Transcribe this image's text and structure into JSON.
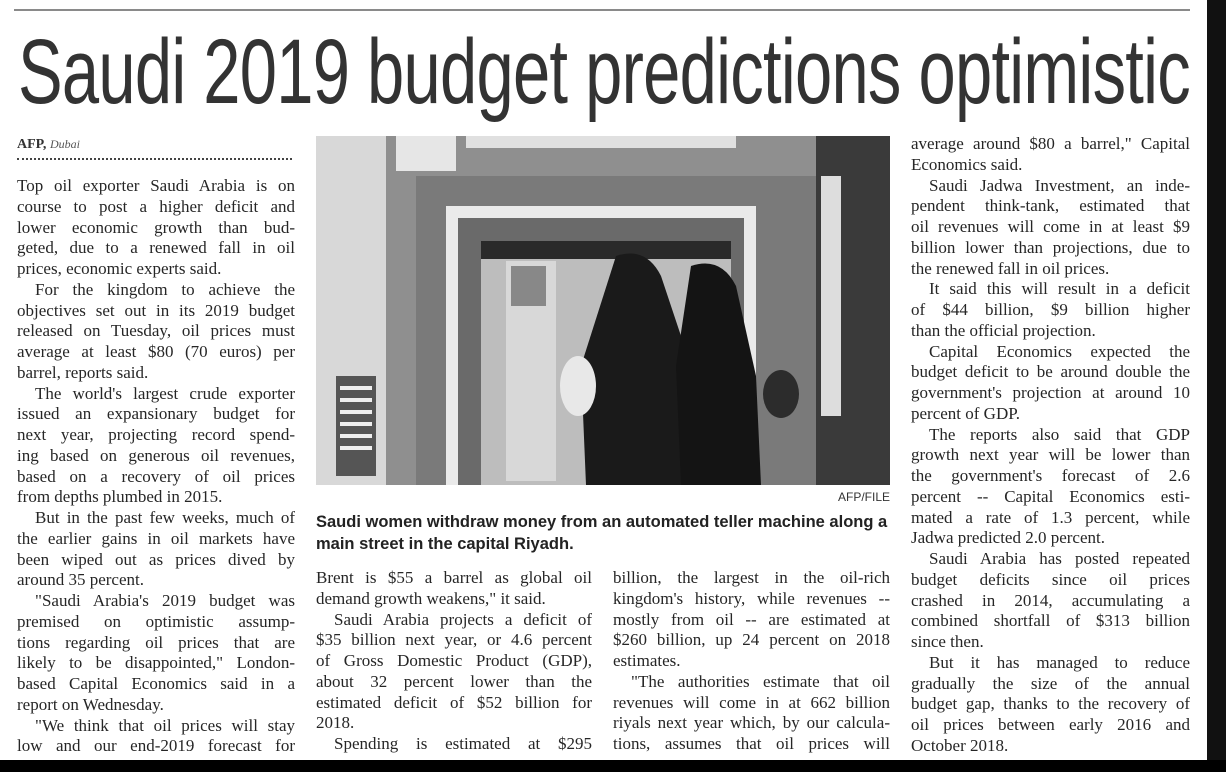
{
  "article": {
    "headline": "Saudi 2019 budget predictions optimistic",
    "byline_agency": "AFP,",
    "byline_place": "Dubai"
  },
  "photo": {
    "credit": "AFP/FILE",
    "caption": "Saudi women withdraw money from an automated teller machine along a main street in the capital Riyadh."
  },
  "columns": [
    {
      "paragraphs": [
        {
          "indent": false,
          "lines": [
            "Top oil exporter Saudi Arabia is on",
            "course to post a higher deficit and",
            "lower economic growth than bud-",
            "geted, due to a renewed fall in oil",
            "prices, economic experts said."
          ]
        },
        {
          "indent": true,
          "lines": [
            "For the kingdom to achieve the",
            "objectives set out in its 2019 budget",
            "released on Tuesday, oil prices must",
            "average at least $80 (70 euros) per",
            "barrel, reports said."
          ]
        },
        {
          "indent": true,
          "lines": [
            "The world's largest crude exporter",
            "issued an expansionary budget for",
            "next year, projecting record spend-",
            "ing based on generous oil revenues,",
            "based on a recovery of oil prices",
            "from depths plumbed in 2015."
          ]
        },
        {
          "indent": true,
          "lines": [
            "But in the past few weeks, much of",
            "the earlier gains in oil markets have",
            "been wiped out as prices dived by",
            "around 35 percent."
          ]
        },
        {
          "indent": true,
          "lines": [
            "\"Saudi Arabia's 2019 budget was",
            "premised on optimistic assump-",
            "tions regarding oil prices that are",
            "likely to be disappointed,\" London-",
            "based Capital Economics said in a",
            "report on Wednesday."
          ]
        },
        {
          "indent": true,
          "continues": true,
          "lines": [
            "\"We think that oil prices will stay",
            "low and our end-2019 forecast for"
          ]
        }
      ]
    },
    {
      "paragraphs": [
        {
          "indent": false,
          "lines": [
            "Brent is $55 a barrel as global oil",
            "demand growth weakens,\" it said."
          ]
        },
        {
          "indent": true,
          "lines": [
            "Saudi Arabia projects a deficit of",
            "$35 billion next year, or 4.6 percent",
            "of Gross Domestic Product (GDP),",
            "about 32 percent lower than the",
            "estimated deficit of $52 billion for",
            "2018."
          ]
        },
        {
          "indent": true,
          "continues": true,
          "lines": [
            "Spending is estimated at $295"
          ]
        }
      ]
    },
    {
      "paragraphs": [
        {
          "indent": false,
          "lines": [
            "billion, the largest in the oil-rich",
            "kingdom's history, while revenues --",
            "mostly from oil -- are estimated at",
            "$260 billion, up 24 percent on 2018",
            "estimates."
          ]
        },
        {
          "indent": true,
          "continues": true,
          "lines": [
            "\"The authorities estimate that oil",
            "revenues will come in at 662 billion",
            "riyals next year which, by our calcula-",
            "tions, assumes that oil prices will"
          ]
        }
      ]
    },
    {
      "paragraphs": [
        {
          "indent": false,
          "lines": [
            "average around $80 a barrel,\" Capital",
            "Economics said."
          ]
        },
        {
          "indent": true,
          "lines": [
            "Saudi Jadwa Investment, an inde-",
            "pendent think-tank, estimated that",
            "oil revenues will come in at least $9",
            "billion lower than projections, due to",
            "the renewed fall in oil prices."
          ]
        },
        {
          "indent": true,
          "lines": [
            "It said this will result in a deficit",
            "of $44 billion, $9 billion higher",
            "than the official projection."
          ]
        },
        {
          "indent": true,
          "lines": [
            "Capital Economics expected the",
            "budget deficit to be around double the",
            "government's projection at around 10",
            "percent of GDP."
          ]
        },
        {
          "indent": true,
          "lines": [
            "The reports also said that GDP",
            "growth next year will be lower than",
            "the government's forecast of 2.6",
            "percent -- Capital Economics esti-",
            "mated a rate of 1.3 percent, while",
            "Jadwa predicted 2.0 percent."
          ]
        },
        {
          "indent": true,
          "lines": [
            "Saudi Arabia has posted repeated",
            "budget deficits since oil prices",
            "crashed in 2014, accumulating a",
            "combined shortfall of $313 billion",
            "since then."
          ]
        },
        {
          "indent": true,
          "lines": [
            "But it has managed to reduce",
            "gradually the size of the annual",
            "budget gap, thanks to the recovery of",
            "oil prices between early 2016 and",
            "October 2018."
          ]
        }
      ]
    }
  ]
}
